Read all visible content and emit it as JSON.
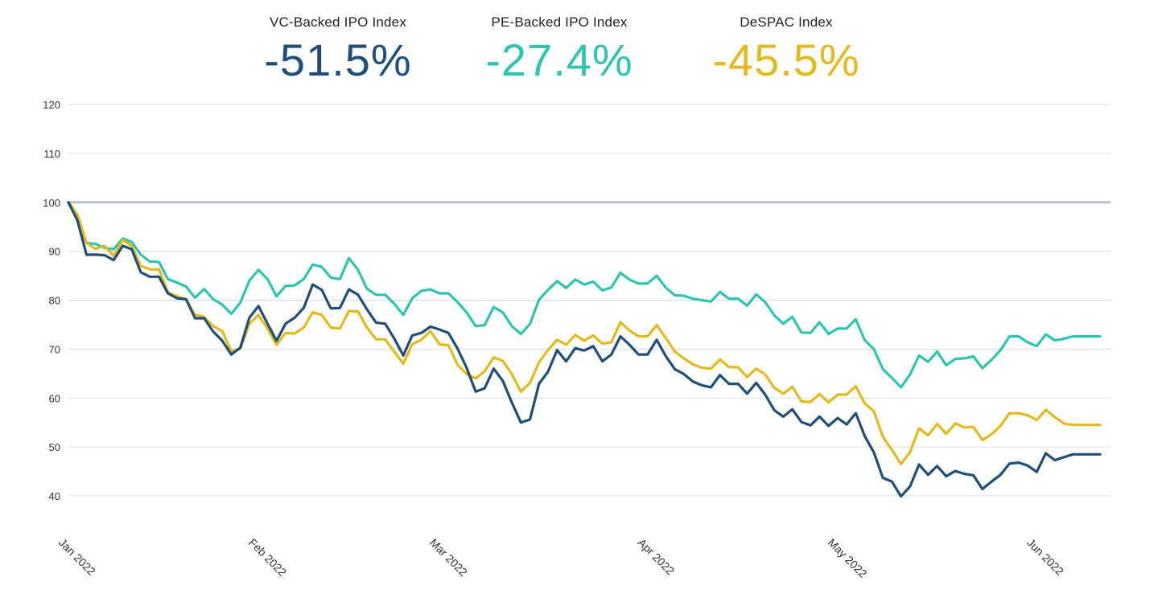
{
  "kpis": [
    {
      "label": "VC-Backed IPO Index",
      "value": "-51.5%",
      "color": "#1f4e79"
    },
    {
      "label": "PE-Backed IPO Index",
      "value": "-27.4%",
      "color": "#2ec4b0"
    },
    {
      "label": "DeSPAC Index",
      "value": "-45.5%",
      "color": "#e3b920"
    }
  ],
  "chart_data": {
    "type": "line",
    "title": "",
    "xlabel": "",
    "ylabel": "",
    "ylim": [
      40,
      120
    ],
    "yticks": [
      40,
      50,
      60,
      70,
      80,
      90,
      100,
      110,
      120
    ],
    "baseline": 100,
    "grid": true,
    "legend": "none",
    "xtick_labels": [
      {
        "label": "Jan 2022",
        "date": "2022-01-03"
      },
      {
        "label": "Feb 2022",
        "date": "2022-02-01"
      },
      {
        "label": "Mar 2022",
        "date": "2022-03-01"
      },
      {
        "label": "Apr 2022",
        "date": "2022-04-01"
      },
      {
        "label": "May 2022",
        "date": "2022-05-02"
      },
      {
        "label": "Jun 2022",
        "date": "2022-06-01"
      }
    ],
    "x": [
      "2022-01-03",
      "2022-01-04",
      "2022-01-05",
      "2022-01-06",
      "2022-01-07",
      "2022-01-10",
      "2022-01-11",
      "2022-01-12",
      "2022-01-13",
      "2022-01-14",
      "2022-01-17",
      "2022-01-18",
      "2022-01-19",
      "2022-01-20",
      "2022-01-21",
      "2022-01-24",
      "2022-01-25",
      "2022-01-26",
      "2022-01-27",
      "2022-01-28",
      "2022-01-31",
      "2022-02-01",
      "2022-02-02",
      "2022-02-03",
      "2022-02-04",
      "2022-02-07",
      "2022-02-08",
      "2022-02-09",
      "2022-02-10",
      "2022-02-11",
      "2022-02-14",
      "2022-02-15",
      "2022-02-16",
      "2022-02-17",
      "2022-02-18",
      "2022-02-21",
      "2022-02-22",
      "2022-02-23",
      "2022-02-24",
      "2022-02-25",
      "2022-02-28",
      "2022-03-01",
      "2022-03-02",
      "2022-03-03",
      "2022-03-04",
      "2022-03-07",
      "2022-03-08",
      "2022-03-09",
      "2022-03-10",
      "2022-03-11",
      "2022-03-14",
      "2022-03-15",
      "2022-03-16",
      "2022-03-17",
      "2022-03-18",
      "2022-03-21",
      "2022-03-22",
      "2022-03-23",
      "2022-03-24",
      "2022-03-25",
      "2022-03-28",
      "2022-03-29",
      "2022-03-30",
      "2022-03-31",
      "2022-04-01",
      "2022-04-04",
      "2022-04-05",
      "2022-04-06",
      "2022-04-07",
      "2022-04-08",
      "2022-04-11",
      "2022-04-12",
      "2022-04-13",
      "2022-04-14",
      "2022-04-15",
      "2022-04-18",
      "2022-04-19",
      "2022-04-20",
      "2022-04-21",
      "2022-04-22",
      "2022-04-25",
      "2022-04-26",
      "2022-04-27",
      "2022-04-28",
      "2022-04-29",
      "2022-05-02",
      "2022-05-03",
      "2022-05-04",
      "2022-05-05",
      "2022-05-06",
      "2022-05-09",
      "2022-05-10",
      "2022-05-11",
      "2022-05-12",
      "2022-05-13",
      "2022-05-16",
      "2022-05-17",
      "2022-05-18",
      "2022-05-19",
      "2022-05-20",
      "2022-05-23",
      "2022-05-24",
      "2022-05-25",
      "2022-05-26",
      "2022-05-27",
      "2022-05-30",
      "2022-05-31",
      "2022-06-01",
      "2022-06-02",
      "2022-06-03",
      "2022-06-06",
      "2022-06-07",
      "2022-06-08",
      "2022-06-09",
      "2022-06-10"
    ],
    "series": [
      {
        "key": "pe",
        "color": "#2ec4b0",
        "values": [
          100,
          96.8,
          91.7,
          91.5,
          90.7,
          90.4,
          92.6,
          91.9,
          89.3,
          87.9,
          87.8,
          84.3,
          83.6,
          82.8,
          80.5,
          82.3,
          80.2,
          79.1,
          77.2,
          79.5,
          84,
          86.2,
          84.3,
          80.8,
          82.9,
          83,
          84.3,
          87.3,
          86.8,
          84.6,
          84.3,
          88.6,
          86.2,
          82.3,
          81.1,
          81.1,
          79.3,
          77,
          80.4,
          81.9,
          82.2,
          81.4,
          81.4,
          79.6,
          77.5,
          74.7,
          74.9,
          78.6,
          77.5,
          74.7,
          73.1,
          75.1,
          80.1,
          82.1,
          83.9,
          82.5,
          84.2,
          83.2,
          83.8,
          82,
          82.6,
          85.6,
          84.2,
          83.4,
          83.4,
          85,
          82.6,
          81,
          80.9,
          80.3,
          80,
          79.7,
          81.7,
          80.3,
          80.3,
          78.9,
          81.2,
          79.6,
          76.9,
          75.2,
          76.6,
          73.4,
          73.3,
          75.5,
          73.1,
          74.2,
          74.2,
          76.1,
          71.8,
          70,
          65.9,
          64.1,
          62.2,
          64.8,
          68.7,
          67.4,
          69.5,
          66.7,
          68,
          68.1,
          68.5,
          66.1,
          67.8,
          69.8,
          72.6,
          72.6,
          71.4,
          70.6,
          73,
          71.8,
          72.1,
          72.6,
          72.6,
          72.6,
          72.6
        ]
      },
      {
        "key": "despac",
        "color": "#e3b920",
        "values": [
          100,
          97.5,
          91.7,
          90.5,
          91.1,
          89,
          92.3,
          91.1,
          87,
          86.3,
          86.3,
          81.6,
          80.8,
          80.2,
          77,
          76.6,
          74.7,
          73.7,
          69.5,
          70.1,
          75.2,
          77,
          74.2,
          70.9,
          73.3,
          73.2,
          74.4,
          77.5,
          77,
          74.4,
          74.2,
          77.8,
          77.7,
          74.4,
          72,
          72,
          69.5,
          67,
          71,
          71.9,
          73.7,
          71,
          70.8,
          66.8,
          64.9,
          64,
          65.5,
          68.3,
          67.6,
          64.9,
          61.3,
          63.1,
          67.3,
          69.8,
          71.9,
          70.9,
          72.9,
          71.7,
          72.8,
          71.1,
          71.4,
          75.5,
          73.8,
          72.6,
          72.6,
          74.9,
          72.3,
          69.5,
          68.1,
          66.9,
          66.2,
          66,
          67.9,
          66.3,
          66.3,
          64.3,
          66,
          64.8,
          62.1,
          60.9,
          62.3,
          59.3,
          59.2,
          60.8,
          59.1,
          60.7,
          60.7,
          62.4,
          58.9,
          57.3,
          52.1,
          49.4,
          46.5,
          48.9,
          53.8,
          52.4,
          54.7,
          52.7,
          54.8,
          54,
          54.1,
          51.4,
          52.6,
          54.3,
          56.9,
          56.9,
          56.5,
          55.5,
          57.6,
          56.1,
          54.8,
          54.5,
          54.5,
          54.5,
          54.5
        ]
      },
      {
        "key": "vc",
        "color": "#1f4e79",
        "values": [
          100,
          96.3,
          89.3,
          89.3,
          89.2,
          88.2,
          91.1,
          90.4,
          85.7,
          84.8,
          84.8,
          81.4,
          80.4,
          80.2,
          76.3,
          76.3,
          73.6,
          71.7,
          68.9,
          70.3,
          76.4,
          78.8,
          75.2,
          71.7,
          75.2,
          76.4,
          78.4,
          83.2,
          82.1,
          78.3,
          78.4,
          82.2,
          81.1,
          78.1,
          75.4,
          75.2,
          72.2,
          68.7,
          72.8,
          73.3,
          74.6,
          74,
          73.3,
          70.1,
          66.2,
          61.3,
          62,
          66,
          63.5,
          59.1,
          55,
          55.6,
          62.9,
          65.4,
          69.8,
          67.5,
          70.2,
          69.7,
          70.6,
          67.5,
          68.9,
          72.6,
          70.9,
          68.9,
          68.9,
          71.9,
          68.6,
          65.9,
          64.9,
          63.4,
          62.6,
          62.2,
          64.7,
          62.9,
          62.9,
          60.9,
          63.1,
          60.7,
          57.5,
          56.2,
          57.7,
          55.1,
          54.4,
          56.2,
          54.3,
          55.9,
          54.6,
          56.9,
          52.2,
          48.9,
          43.7,
          42.9,
          39.9,
          41.9,
          46.4,
          44.3,
          46.1,
          44,
          45.1,
          44.5,
          44.2,
          41.4,
          42.9,
          44.3,
          46.6,
          46.8,
          46.2,
          44.9,
          48.7,
          47.3,
          47.9,
          48.5,
          48.5,
          48.5,
          48.5
        ]
      }
    ]
  }
}
